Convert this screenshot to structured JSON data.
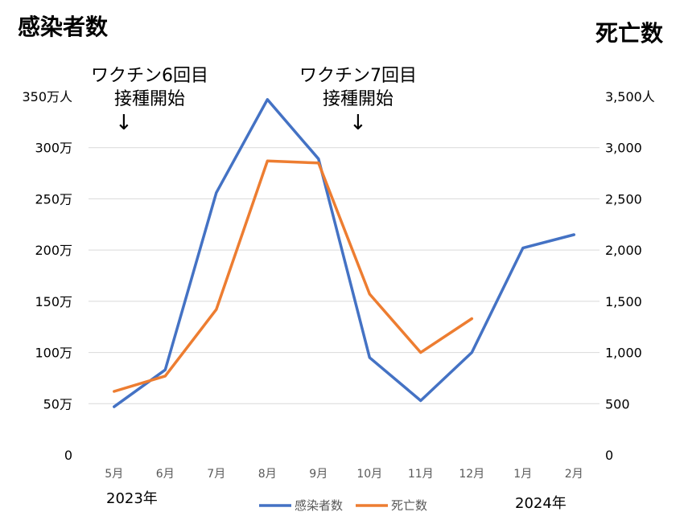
{
  "titles": {
    "left": "感染者数",
    "right": "死亡数"
  },
  "annotations": [
    {
      "line1": "ワクチン6回目",
      "line2": "接種開始",
      "arrow": "↓"
    },
    {
      "line1": "ワクチン7回目",
      "line2": "接種開始",
      "arrow": "↓"
    }
  ],
  "years": {
    "start": "2023年",
    "end": "2024年"
  },
  "chart_data": {
    "type": "line",
    "categories": [
      "5月",
      "6月",
      "7月",
      "8月",
      "9月",
      "10月",
      "11月",
      "12月",
      "1月",
      "2月"
    ],
    "y_left": {
      "ticks": [
        "0",
        "50万",
        "100万",
        "150万",
        "200万",
        "250万",
        "300万",
        "350万人"
      ],
      "ylim": [
        0,
        3500000
      ]
    },
    "y_right": {
      "ticks": [
        "0",
        "500",
        "1,000",
        "1,500",
        "2,000",
        "2,500",
        "3,000",
        "3,500人"
      ],
      "ylim": [
        0,
        3500
      ]
    },
    "grid": true,
    "legend_position": "bottom",
    "series": [
      {
        "name": "感染者数",
        "axis": "left",
        "color": "#4472C4",
        "values": [
          470000,
          830000,
          2560000,
          3470000,
          2890000,
          950000,
          530000,
          1000000,
          2020000,
          2150000
        ]
      },
      {
        "name": "死亡数",
        "axis": "right",
        "color": "#ED7D31",
        "values": [
          620,
          770,
          1420,
          2870,
          2850,
          1570,
          1000,
          1330,
          null,
          null
        ]
      }
    ]
  }
}
